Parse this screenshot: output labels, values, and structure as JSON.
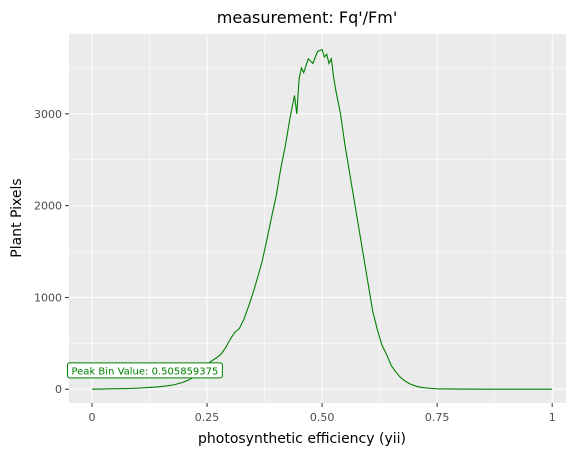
{
  "chart_data": {
    "type": "line",
    "title": "measurement: Fq'/Fm'",
    "xlabel": "photosynthetic efficiency (yii)",
    "ylabel": "Plant Pixels",
    "xlim": [
      -0.05,
      1.03
    ],
    "ylim": [
      -150,
      3870
    ],
    "x_ticks": [
      0,
      0.25,
      0.5,
      0.75,
      1
    ],
    "x_tick_labels": [
      "0",
      "0.25",
      "0.50",
      "0.75",
      "1"
    ],
    "y_ticks": [
      0,
      1000,
      2000,
      3000
    ],
    "y_tick_labels": [
      "0",
      "1000",
      "2000",
      "3000"
    ],
    "grid": true,
    "legend": "none",
    "colors": {
      "panel": "#ebebeb",
      "grid": "#ffffff",
      "line": "#008000"
    },
    "annotation": {
      "text": "Peak Bin Value: 0.505859375",
      "x": 0.115,
      "y": 200,
      "color": "#008000"
    },
    "series": [
      {
        "x": [
          0,
          0.02,
          0.04,
          0.06,
          0.08,
          0.1,
          0.12,
          0.14,
          0.16,
          0.18,
          0.2,
          0.21,
          0.22,
          0.23,
          0.24,
          0.25,
          0.26,
          0.27,
          0.28,
          0.29,
          0.3,
          0.31,
          0.32,
          0.33,
          0.34,
          0.35,
          0.36,
          0.37,
          0.38,
          0.39,
          0.4,
          0.41,
          0.42,
          0.43,
          0.44,
          0.445,
          0.45,
          0.455,
          0.46,
          0.47,
          0.48,
          0.49,
          0.5,
          0.505,
          0.51,
          0.515,
          0.52,
          0.525,
          0.53,
          0.54,
          0.55,
          0.56,
          0.57,
          0.58,
          0.59,
          0.6,
          0.61,
          0.62,
          0.63,
          0.64,
          0.65,
          0.66,
          0.67,
          0.68,
          0.69,
          0.7,
          0.71,
          0.72,
          0.73,
          0.74,
          0.75,
          0.77,
          0.8,
          0.85,
          0.9,
          0.95,
          1
        ],
        "values": [
          0,
          2,
          4,
          6,
          8,
          12,
          18,
          25,
          35,
          50,
          80,
          100,
          130,
          170,
          220,
          270,
          310,
          340,
          380,
          450,
          540,
          620,
          660,
          760,
          900,
          1050,
          1220,
          1400,
          1630,
          1870,
          2100,
          2400,
          2650,
          2950,
          3200,
          3000,
          3380,
          3500,
          3450,
          3600,
          3550,
          3680,
          3700,
          3620,
          3650,
          3550,
          3600,
          3400,
          3250,
          3000,
          2650,
          2350,
          2050,
          1750,
          1450,
          1150,
          850,
          650,
          480,
          380,
          260,
          190,
          130,
          90,
          60,
          40,
          25,
          18,
          12,
          8,
          5,
          3,
          2,
          1,
          0,
          0,
          0
        ]
      }
    ]
  }
}
